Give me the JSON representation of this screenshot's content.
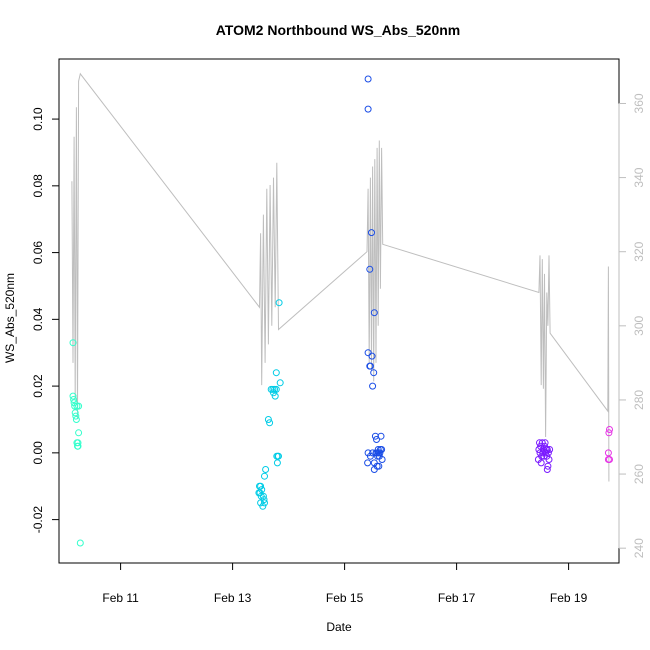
{
  "chart_data": {
    "type": "scatter",
    "title": "ATOM2 Northbound WS_Abs_520nm",
    "xlabel": "Date",
    "ylabel": "WS_Abs_520nm",
    "x_ticks": [
      "Feb 11",
      "Feb 13",
      "Feb 15",
      "Feb 17",
      "Feb 19"
    ],
    "xlim": [
      "Feb 9.9",
      "Feb 19.9"
    ],
    "ylim": [
      -0.033,
      0.118
    ],
    "y_ticks": [
      "-0.02",
      "0.00",
      "0.02",
      "0.04",
      "0.06",
      "0.08",
      "0.10"
    ],
    "y2lim": [
      236,
      372
    ],
    "y2_ticks": [
      "240",
      "260",
      "280",
      "300",
      "320",
      "340",
      "360"
    ],
    "grid": false,
    "colors": {
      "axis": "#000000",
      "secondary_axis": "#bebebe",
      "line": "#bebebe"
    },
    "series": [
      {
        "type": "points",
        "points": [
          {
            "x": "Feb 10.15",
            "y": 0.033,
            "color": "#33ffcc"
          },
          {
            "x": "Feb 10.15",
            "y": 0.017,
            "color": "#33ffcc"
          },
          {
            "x": "Feb 10.16",
            "y": 0.016,
            "color": "#33ffcc"
          },
          {
            "x": "Feb 10.17",
            "y": 0.015,
            "color": "#33ffcc"
          },
          {
            "x": "Feb 10.18",
            "y": 0.014,
            "color": "#33ffcc"
          },
          {
            "x": "Feb 10.22",
            "y": 0.014,
            "color": "#33ffcc"
          },
          {
            "x": "Feb 10.25",
            "y": 0.014,
            "color": "#33ffcc"
          },
          {
            "x": "Feb 10.19",
            "y": 0.012,
            "color": "#33ffcc"
          },
          {
            "x": "Feb 10.20",
            "y": 0.011,
            "color": "#33ffcc"
          },
          {
            "x": "Feb 10.21",
            "y": 0.01,
            "color": "#33ffcc"
          },
          {
            "x": "Feb 10.25",
            "y": 0.006,
            "color": "#33ffcc"
          },
          {
            "x": "Feb 10.22",
            "y": 0.003,
            "color": "#33ffcc"
          },
          {
            "x": "Feb 10.24",
            "y": 0.003,
            "color": "#33ffcc"
          },
          {
            "x": "Feb 10.23",
            "y": 0.002,
            "color": "#33ffcc"
          },
          {
            "x": "Feb 10.24",
            "y": 0.002,
            "color": "#33ffcc"
          },
          {
            "x": "Feb 10.28",
            "y": -0.027,
            "color": "#33ffcc"
          },
          {
            "x": "Feb 13.83",
            "y": 0.045,
            "color": "#00cce6"
          },
          {
            "x": "Feb 13.78",
            "y": 0.024,
            "color": "#00cce6"
          },
          {
            "x": "Feb 13.85",
            "y": 0.021,
            "color": "#00cce6"
          },
          {
            "x": "Feb 13.69",
            "y": 0.019,
            "color": "#00cce6"
          },
          {
            "x": "Feb 13.72",
            "y": 0.019,
            "color": "#00cce6"
          },
          {
            "x": "Feb 13.75",
            "y": 0.019,
            "color": "#00cce6"
          },
          {
            "x": "Feb 13.78",
            "y": 0.019,
            "color": "#00cce6"
          },
          {
            "x": "Feb 13.73",
            "y": 0.018,
            "color": "#00cce6"
          },
          {
            "x": "Feb 13.76",
            "y": 0.017,
            "color": "#00cce6"
          },
          {
            "x": "Feb 13.64",
            "y": 0.01,
            "color": "#00cce6"
          },
          {
            "x": "Feb 13.66",
            "y": 0.009,
            "color": "#00cce6"
          },
          {
            "x": "Feb 13.79",
            "y": -0.001,
            "color": "#00cce6"
          },
          {
            "x": "Feb 13.81",
            "y": -0.001,
            "color": "#00cce6"
          },
          {
            "x": "Feb 13.82",
            "y": -0.001,
            "color": "#00cce6"
          },
          {
            "x": "Feb 13.80",
            "y": -0.003,
            "color": "#00cce6"
          },
          {
            "x": "Feb 13.59",
            "y": -0.005,
            "color": "#00cce6"
          },
          {
            "x": "Feb 13.57",
            "y": -0.007,
            "color": "#00cce6"
          },
          {
            "x": "Feb 13.48",
            "y": -0.01,
            "color": "#00cce6"
          },
          {
            "x": "Feb 13.50",
            "y": -0.01,
            "color": "#00cce6"
          },
          {
            "x": "Feb 13.52",
            "y": -0.011,
            "color": "#00cce6"
          },
          {
            "x": "Feb 13.47",
            "y": -0.012,
            "color": "#00cce6"
          },
          {
            "x": "Feb 13.49",
            "y": -0.012,
            "color": "#00cce6"
          },
          {
            "x": "Feb 13.51",
            "y": -0.013,
            "color": "#00cce6"
          },
          {
            "x": "Feb 13.55",
            "y": -0.013,
            "color": "#00cce6"
          },
          {
            "x": "Feb 13.56",
            "y": -0.014,
            "color": "#00cce6"
          },
          {
            "x": "Feb 13.57",
            "y": -0.015,
            "color": "#00cce6"
          },
          {
            "x": "Feb 13.50",
            "y": -0.015,
            "color": "#00cce6"
          },
          {
            "x": "Feb 13.54",
            "y": -0.016,
            "color": "#00cce6"
          },
          {
            "x": "Feb 15.42",
            "y": 0.112,
            "color": "#1a4de6"
          },
          {
            "x": "Feb 15.42",
            "y": 0.103,
            "color": "#1a4de6"
          },
          {
            "x": "Feb 15.48",
            "y": 0.066,
            "color": "#1a4de6"
          },
          {
            "x": "Feb 15.45",
            "y": 0.055,
            "color": "#1a4de6"
          },
          {
            "x": "Feb 15.53",
            "y": 0.042,
            "color": "#1a4de6"
          },
          {
            "x": "Feb 15.42",
            "y": 0.03,
            "color": "#1a4de6"
          },
          {
            "x": "Feb 15.49",
            "y": 0.029,
            "color": "#1a4de6"
          },
          {
            "x": "Feb 15.45",
            "y": 0.026,
            "color": "#1a4de6"
          },
          {
            "x": "Feb 15.46",
            "y": 0.026,
            "color": "#1a4de6"
          },
          {
            "x": "Feb 15.52",
            "y": 0.024,
            "color": "#1a4de6"
          },
          {
            "x": "Feb 15.50",
            "y": 0.02,
            "color": "#1a4de6"
          },
          {
            "x": "Feb 15.55",
            "y": 0.005,
            "color": "#1a4de6"
          },
          {
            "x": "Feb 15.65",
            "y": 0.005,
            "color": "#1a4de6"
          },
          {
            "x": "Feb 15.57",
            "y": 0.004,
            "color": "#1a4de6"
          },
          {
            "x": "Feb 15.60",
            "y": 0.001,
            "color": "#1a4de6"
          },
          {
            "x": "Feb 15.64",
            "y": 0.001,
            "color": "#1a4de6"
          },
          {
            "x": "Feb 15.66",
            "y": 0.001,
            "color": "#1a4de6"
          },
          {
            "x": "Feb 15.42",
            "y": 0.0,
            "color": "#1a4de6"
          },
          {
            "x": "Feb 15.50",
            "y": 0.0,
            "color": "#1a4de6"
          },
          {
            "x": "Feb 15.56",
            "y": 0.0,
            "color": "#1a4de6"
          },
          {
            "x": "Feb 15.58",
            "y": 0.0,
            "color": "#1a4de6"
          },
          {
            "x": "Feb 15.61",
            "y": 0.0,
            "color": "#1a4de6"
          },
          {
            "x": "Feb 15.63",
            "y": 0.0,
            "color": "#1a4de6"
          },
          {
            "x": "Feb 15.46",
            "y": -0.001,
            "color": "#1a4de6"
          },
          {
            "x": "Feb 15.59",
            "y": -0.001,
            "color": "#1a4de6"
          },
          {
            "x": "Feb 15.62",
            "y": -0.001,
            "color": "#1a4de6"
          },
          {
            "x": "Feb 15.67",
            "y": -0.002,
            "color": "#1a4de6"
          },
          {
            "x": "Feb 15.41",
            "y": -0.003,
            "color": "#1a4de6"
          },
          {
            "x": "Feb 15.53",
            "y": -0.003,
            "color": "#1a4de6"
          },
          {
            "x": "Feb 15.58",
            "y": -0.004,
            "color": "#1a4de6"
          },
          {
            "x": "Feb 15.61",
            "y": -0.004,
            "color": "#1a4de6"
          },
          {
            "x": "Feb 15.53",
            "y": -0.005,
            "color": "#1a4de6"
          },
          {
            "x": "Feb 18.48",
            "y": 0.003,
            "color": "#7a1aff"
          },
          {
            "x": "Feb 18.53",
            "y": 0.003,
            "color": "#7a1aff"
          },
          {
            "x": "Feb 18.58",
            "y": 0.003,
            "color": "#7a1aff"
          },
          {
            "x": "Feb 18.50",
            "y": 0.002,
            "color": "#7a1aff"
          },
          {
            "x": "Feb 18.57",
            "y": 0.002,
            "color": "#7a1aff"
          },
          {
            "x": "Feb 18.47",
            "y": 0.001,
            "color": "#7a1aff"
          },
          {
            "x": "Feb 18.55",
            "y": 0.001,
            "color": "#7a1aff"
          },
          {
            "x": "Feb 18.60",
            "y": 0.001,
            "color": "#7a1aff"
          },
          {
            "x": "Feb 18.62",
            "y": 0.001,
            "color": "#7a1aff"
          },
          {
            "x": "Feb 18.66",
            "y": 0.001,
            "color": "#7a1aff"
          },
          {
            "x": "Feb 18.49",
            "y": 0.0,
            "color": "#7a1aff"
          },
          {
            "x": "Feb 18.54",
            "y": 0.0,
            "color": "#7a1aff"
          },
          {
            "x": "Feb 18.59",
            "y": 0.0,
            "color": "#7a1aff"
          },
          {
            "x": "Feb 18.64",
            "y": 0.0,
            "color": "#7a1aff"
          },
          {
            "x": "Feb 18.52",
            "y": -0.001,
            "color": "#7a1aff"
          },
          {
            "x": "Feb 18.56",
            "y": -0.001,
            "color": "#7a1aff"
          },
          {
            "x": "Feb 18.61",
            "y": -0.001,
            "color": "#7a1aff"
          },
          {
            "x": "Feb 18.46",
            "y": -0.002,
            "color": "#7a1aff"
          },
          {
            "x": "Feb 18.65",
            "y": -0.002,
            "color": "#7a1aff"
          },
          {
            "x": "Feb 18.51",
            "y": -0.003,
            "color": "#7a1aff"
          },
          {
            "x": "Feb 18.63",
            "y": -0.004,
            "color": "#7a1aff"
          },
          {
            "x": "Feb 18.62",
            "y": -0.005,
            "color": "#7a1aff"
          },
          {
            "x": "Feb 19.73",
            "y": 0.007,
            "color": "#e633e6"
          },
          {
            "x": "Feb 19.72",
            "y": 0.006,
            "color": "#e633e6"
          },
          {
            "x": "Feb 19.71",
            "y": 0.0,
            "color": "#e633e6"
          },
          {
            "x": "Feb 19.71",
            "y": -0.002,
            "color": "#e633e6"
          },
          {
            "x": "Feb 19.73",
            "y": -0.002,
            "color": "#e633e6"
          }
        ]
      },
      {
        "type": "line",
        "axis": "secondary",
        "color": "#bebebe",
        "points": [
          [
            "Feb 10.13",
            339
          ],
          [
            "Feb 10.15",
            290
          ],
          [
            "Feb 10.17",
            351
          ],
          [
            "Feb 10.19",
            280
          ],
          [
            "Feb 10.21",
            359
          ],
          [
            "Feb 10.23",
            275
          ],
          [
            "Feb 10.25",
            366
          ],
          [
            "Feb 10.28",
            368
          ],
          [
            "Feb 13.48",
            305
          ],
          [
            "Feb 13.50",
            325
          ],
          [
            "Feb 13.52",
            284
          ],
          [
            "Feb 13.55",
            330
          ],
          [
            "Feb 13.58",
            290
          ],
          [
            "Feb 13.61",
            337
          ],
          [
            "Feb 13.64",
            295
          ],
          [
            "Feb 13.67",
            338
          ],
          [
            "Feb 13.70",
            300
          ],
          [
            "Feb 13.73",
            340
          ],
          [
            "Feb 13.76",
            305
          ],
          [
            "Feb 13.79",
            344
          ],
          [
            "Feb 13.82",
            299
          ],
          [
            "Feb 15.40",
            320
          ],
          [
            "Feb 15.42",
            337
          ],
          [
            "Feb 15.44",
            290
          ],
          [
            "Feb 15.46",
            340
          ],
          [
            "Feb 15.48",
            288
          ],
          [
            "Feb 15.50",
            343
          ],
          [
            "Feb 15.52",
            285
          ],
          [
            "Feb 15.54",
            345
          ],
          [
            "Feb 15.56",
            290
          ],
          [
            "Feb 15.58",
            348
          ],
          [
            "Feb 15.60",
            300
          ],
          [
            "Feb 15.62",
            350
          ],
          [
            "Feb 15.64",
            310
          ],
          [
            "Feb 15.66",
            348
          ],
          [
            "Feb 15.68",
            322
          ],
          [
            "Feb 18.47",
            309
          ],
          [
            "Feb 18.49",
            319
          ],
          [
            "Feb 18.51",
            284
          ],
          [
            "Feb 18.53",
            318
          ],
          [
            "Feb 18.55",
            283
          ],
          [
            "Feb 18.57",
            314
          ],
          [
            "Feb 18.59",
            270
          ],
          [
            "Feb 18.61",
            309
          ],
          [
            "Feb 18.63",
            300
          ],
          [
            "Feb 18.65",
            319
          ],
          [
            "Feb 18.67",
            298
          ],
          [
            "Feb 19.70",
            277
          ],
          [
            "Feb 19.71",
            316
          ],
          [
            "Feb 19.72",
            258
          ]
        ]
      }
    ]
  }
}
